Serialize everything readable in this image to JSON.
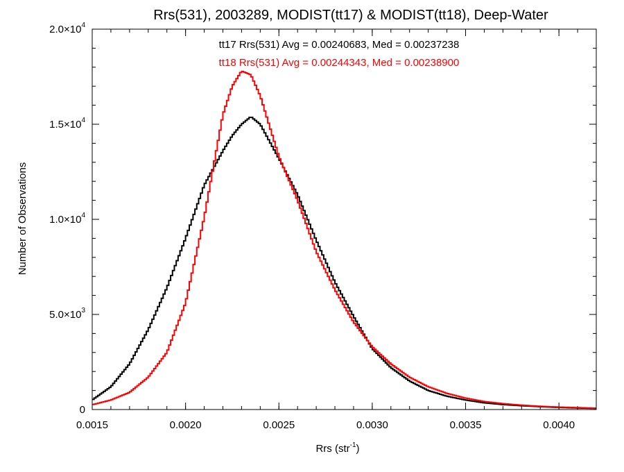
{
  "chart_data": {
    "type": "line",
    "title": "Rrs(531), 2003289, MODIST(tt17) & MODIST(tt18), Deep-Water",
    "xlabel": "Rrs (str",
    "xlabel_sup": "-1",
    "xlabel_end": ")",
    "ylabel": "Number of Observations",
    "xlim": [
      0.0015,
      0.0042
    ],
    "ylim": [
      0,
      20000
    ],
    "grid": false,
    "x_ticks": [
      {
        "value": 0.0015,
        "label": "0.0015"
      },
      {
        "value": 0.002,
        "label": "0.0020"
      },
      {
        "value": 0.0025,
        "label": "0.0025"
      },
      {
        "value": 0.003,
        "label": "0.0030"
      },
      {
        "value": 0.0035,
        "label": "0.0035"
      },
      {
        "value": 0.004,
        "label": "0.0040"
      }
    ],
    "y_ticks": [
      {
        "value": 0,
        "mant": "0",
        "exp": ""
      },
      {
        "value": 5000,
        "mant": "5.0×10",
        "exp": "3"
      },
      {
        "value": 10000,
        "mant": "1.0×10",
        "exp": "4"
      },
      {
        "value": 15000,
        "mant": "1.5×10",
        "exp": "4"
      },
      {
        "value": 20000,
        "mant": "2.0×10",
        "exp": "4"
      }
    ],
    "annotations": [
      {
        "text": "tt17 Rrs(531) Avg = 0.00240683, Med = 0.00237238",
        "color": "#000000"
      },
      {
        "text": "tt18 Rrs(531) Avg = 0.00244343, Med = 0.00238900",
        "color": "#ff0000"
      }
    ],
    "series": [
      {
        "color": "#000000",
        "x": [
          0.0015,
          0.0016,
          0.0017,
          0.0018,
          0.0019,
          0.002,
          0.0021,
          0.0022,
          0.00225,
          0.0023,
          0.00235,
          0.0024,
          0.0025,
          0.0026,
          0.0027,
          0.0028,
          0.0029,
          0.003,
          0.0031,
          0.0032,
          0.0033,
          0.0034,
          0.0035,
          0.0036,
          0.0037,
          0.0038,
          0.0039,
          0.004,
          0.0041,
          0.0042
        ],
        "y": [
          500,
          1200,
          2400,
          4200,
          6400,
          9000,
          11800,
          13600,
          14400,
          15000,
          15400,
          15000,
          13200,
          11300,
          8900,
          6700,
          4900,
          3200,
          2200,
          1500,
          1000,
          700,
          500,
          350,
          260,
          200,
          150,
          110,
          80,
          60
        ]
      },
      {
        "color": "#ff0000",
        "x": [
          0.0015,
          0.0016,
          0.0017,
          0.0018,
          0.0019,
          0.002,
          0.0021,
          0.0022,
          0.00225,
          0.0023,
          0.00235,
          0.0024,
          0.0025,
          0.0026,
          0.0027,
          0.0028,
          0.0029,
          0.003,
          0.0031,
          0.0032,
          0.0033,
          0.0034,
          0.0035,
          0.0036,
          0.0037,
          0.0038,
          0.0039,
          0.004,
          0.0041,
          0.0042
        ],
        "y": [
          250,
          500,
          900,
          1700,
          3000,
          5600,
          10100,
          15500,
          17000,
          17800,
          17600,
          16500,
          13300,
          11000,
          8300,
          6300,
          4600,
          3300,
          2400,
          1700,
          1200,
          850,
          600,
          420,
          310,
          230,
          170,
          130,
          100,
          70
        ]
      }
    ]
  }
}
